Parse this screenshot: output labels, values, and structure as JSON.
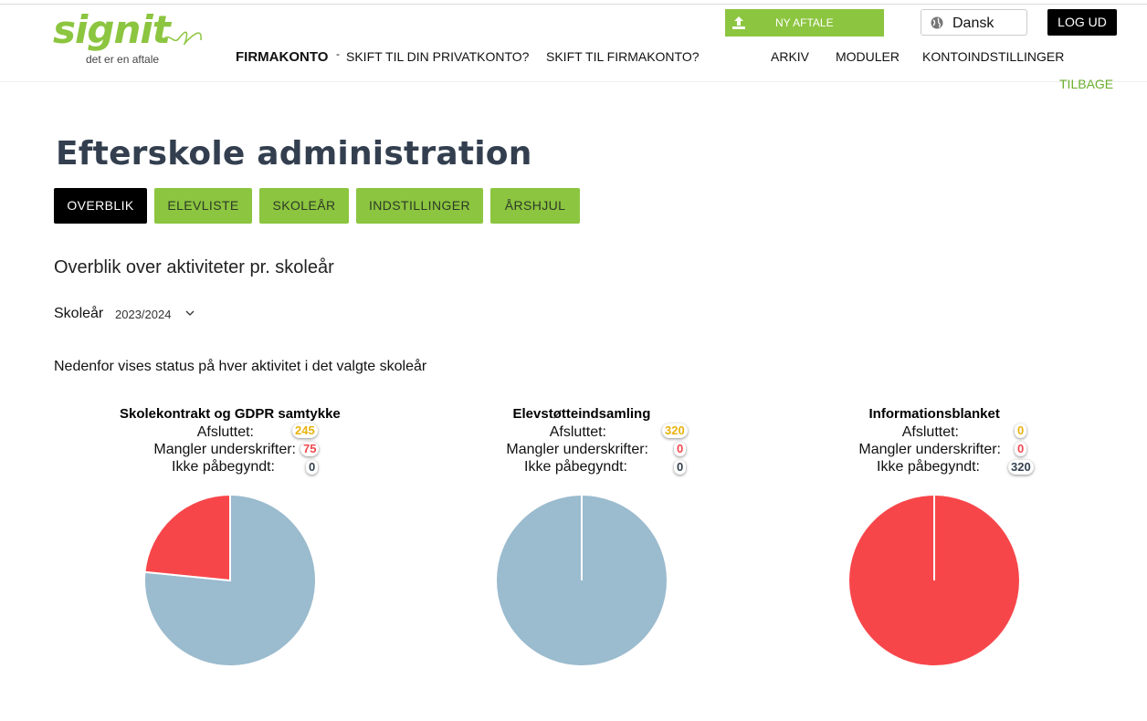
{
  "logo": {
    "word": "signit",
    "tagline": "det er en aftale"
  },
  "header": {
    "new_agreement": "NY AFTALE",
    "language": "Dansk",
    "logout": "LOG UD",
    "nav": {
      "firm_account": "FIRMAKONTO",
      "dash": "-",
      "switch_private": "SKIFT TIL DIN PRIVATKONTO?",
      "switch_firm": "SKIFT TIL FIRMAKONTO?",
      "archive": "ARKIV",
      "modules": "MODULER",
      "account_settings": "KONTOINDSTILLINGER"
    },
    "back": "TILBAGE"
  },
  "page": {
    "title": "Efterskole administration",
    "tabs": [
      "OVERBLIK",
      "ELEVLISTE",
      "SKOLEÅR",
      "INDSTILLINGER",
      "ÅRSHJUL"
    ],
    "active_tab": 0,
    "subtitle": "Overblik over aktiviteter pr. skoleår",
    "school_year_label": "Skoleår",
    "school_year_value": "2023/2024",
    "description": "Nedenfor vises status på hver aktivitet i det valgte skoleår"
  },
  "status_labels": {
    "done": "Afsluttet:",
    "missing": "Mangler underskrifter:",
    "not_started": "Ikke påbegyndt:"
  },
  "colors": {
    "brand_green": "#8cc53f",
    "done_slice": "#9bbbce",
    "missing_slice": "#f7464a",
    "done_badge": "#e8b20e",
    "missing_badge": "#f0484e",
    "none_badge": "#333f4f"
  },
  "chart_data": [
    {
      "type": "pie",
      "title": "Skolekontrakt og GDPR samtykke",
      "categories": [
        "Afsluttet",
        "Mangler underskrifter",
        "Ikke påbegyndt"
      ],
      "values": [
        245,
        75,
        0
      ]
    },
    {
      "type": "pie",
      "title": "Elevstøtteindsamling",
      "categories": [
        "Afsluttet",
        "Mangler underskrifter",
        "Ikke påbegyndt"
      ],
      "values": [
        320,
        0,
        0
      ]
    },
    {
      "type": "pie",
      "title": "Informationsblanket",
      "categories": [
        "Afsluttet",
        "Mangler underskrifter",
        "Ikke påbegyndt"
      ],
      "values": [
        0,
        0,
        320
      ]
    }
  ]
}
